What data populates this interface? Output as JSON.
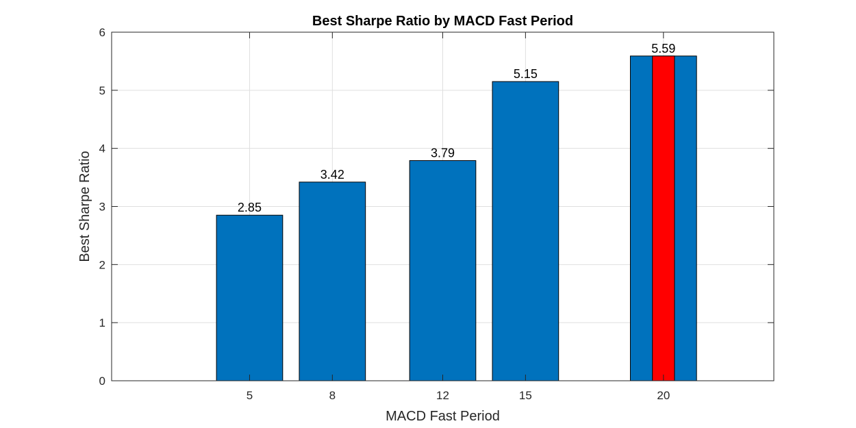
{
  "chart_data": {
    "type": "bar",
    "title": "Best Sharpe Ratio by MACD Fast Period",
    "xlabel": "MACD Fast Period",
    "ylabel": "Best Sharpe Ratio",
    "x": [
      5,
      8,
      12,
      15,
      20
    ],
    "values": [
      2.85,
      3.42,
      3.79,
      5.15,
      5.59
    ],
    "data_labels": [
      "2.85",
      "3.42",
      "3.79",
      "5.15",
      "5.59"
    ],
    "xlim": [
      0,
      24
    ],
    "ylim": [
      0,
      6
    ],
    "yticks": [
      0,
      1,
      2,
      3,
      4,
      5,
      6
    ],
    "grid": true,
    "bar_color": "#0072BD",
    "highlight": {
      "x": 20,
      "value": 5.59,
      "color": "#FF0000"
    }
  }
}
